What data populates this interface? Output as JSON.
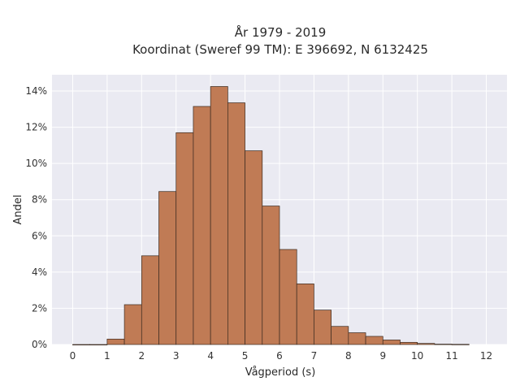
{
  "chart_data": {
    "type": "bar",
    "title_line1": "År 1979 - 2019",
    "title_line2": "Koordinat (Sweref 99 TM): E 396692, N 6132425",
    "xlabel": "Vågperiod (s)",
    "ylabel": "Andel",
    "bin_width": 0.5,
    "bins": [
      {
        "start": 0.0,
        "value": 0.0
      },
      {
        "start": 0.5,
        "value": 0.0
      },
      {
        "start": 1.0,
        "value": 0.3
      },
      {
        "start": 1.5,
        "value": 2.2
      },
      {
        "start": 2.0,
        "value": 4.9
      },
      {
        "start": 2.5,
        "value": 8.45
      },
      {
        "start": 3.0,
        "value": 11.7
      },
      {
        "start": 3.5,
        "value": 13.15
      },
      {
        "start": 4.0,
        "value": 14.25
      },
      {
        "start": 4.5,
        "value": 13.35
      },
      {
        "start": 5.0,
        "value": 10.7
      },
      {
        "start": 5.5,
        "value": 7.65
      },
      {
        "start": 6.0,
        "value": 5.25
      },
      {
        "start": 6.5,
        "value": 3.35
      },
      {
        "start": 7.0,
        "value": 1.9
      },
      {
        "start": 7.5,
        "value": 1.0
      },
      {
        "start": 8.0,
        "value": 0.65
      },
      {
        "start": 8.5,
        "value": 0.45
      },
      {
        "start": 9.0,
        "value": 0.25
      },
      {
        "start": 9.5,
        "value": 0.12
      },
      {
        "start": 10.0,
        "value": 0.06
      },
      {
        "start": 10.5,
        "value": 0.02
      },
      {
        "start": 11.0,
        "value": 0.01
      }
    ],
    "xlim": [
      -0.6,
      12.6
    ],
    "ylim": [
      0,
      14.9
    ],
    "x_ticks": [
      0,
      1,
      2,
      3,
      4,
      5,
      6,
      7,
      8,
      9,
      10,
      11,
      12
    ],
    "x_tick_labels": [
      "0",
      "1",
      "2",
      "3",
      "4",
      "5",
      "6",
      "7",
      "8",
      "9",
      "10",
      "11",
      "12"
    ],
    "y_ticks": [
      0,
      2,
      4,
      6,
      8,
      10,
      12,
      14
    ],
    "y_tick_labels": [
      "0%",
      "2%",
      "4%",
      "6%",
      "8%",
      "10%",
      "12%",
      "14%"
    ],
    "grid": true,
    "colors": {
      "bar_fill": "#c07b55",
      "bar_edge": "#3a2a20",
      "plot_bg": "#eaeaf2",
      "grid": "#ffffff"
    }
  }
}
